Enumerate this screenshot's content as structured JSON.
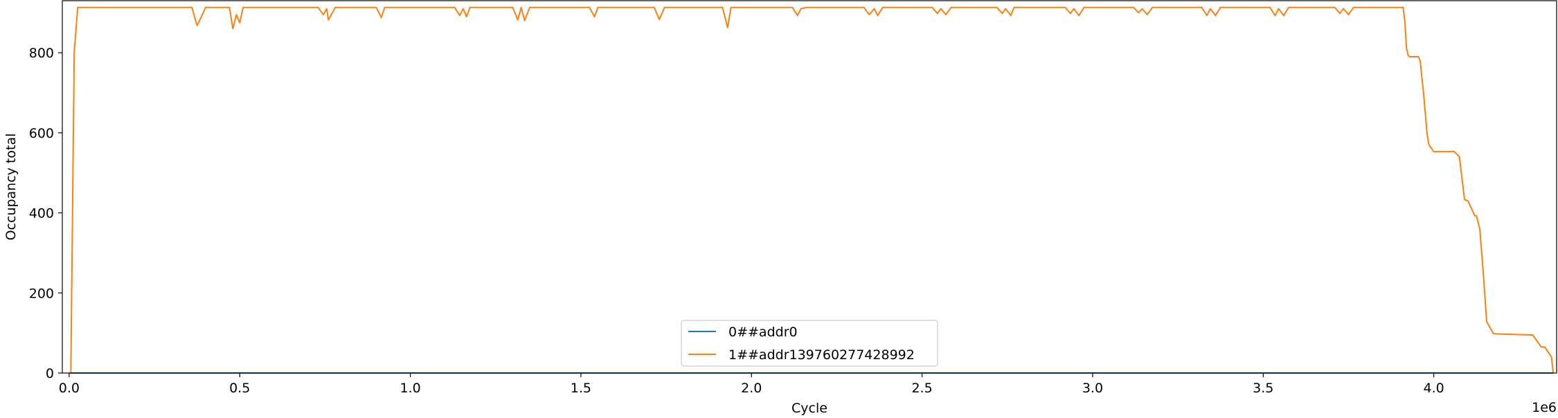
{
  "chart_data": {
    "type": "line",
    "title": "",
    "xlabel": "Cycle",
    "ylabel": "Occupancy total",
    "x_offset_label": "1e6",
    "xlim": [
      -0.02,
      4.36
    ],
    "ylim": [
      0,
      930
    ],
    "x_ticks": [
      0.0,
      0.5,
      1.0,
      1.5,
      2.0,
      2.5,
      3.0,
      3.5,
      4.0
    ],
    "x_tick_labels": [
      "0.0",
      "0.5",
      "1.0",
      "1.5",
      "2.0",
      "2.5",
      "3.0",
      "3.5",
      "4.0"
    ],
    "y_ticks": [
      0,
      200,
      400,
      600,
      800
    ],
    "y_tick_labels": [
      "0",
      "200",
      "400",
      "600",
      "800"
    ],
    "grid": false,
    "legend_position": "bottom-center",
    "series": [
      {
        "name": "0##addr0",
        "color": "#1f77b4",
        "x": [
          0.0,
          4.35
        ],
        "y": [
          0,
          0
        ]
      },
      {
        "name": "1##addr139760277428992",
        "color": "#ff7f0e",
        "x": [
          0.0,
          0.005,
          0.015,
          0.025,
          0.36,
          0.375,
          0.385,
          0.4,
          0.41,
          0.47,
          0.48,
          0.49,
          0.5,
          0.51,
          0.73,
          0.745,
          0.755,
          0.76,
          0.78,
          0.9,
          0.915,
          0.925,
          0.94,
          1.13,
          1.145,
          1.155,
          1.165,
          1.175,
          1.19,
          1.3,
          1.315,
          1.325,
          1.335,
          1.35,
          1.525,
          1.54,
          1.55,
          1.565,
          1.715,
          1.73,
          1.745,
          1.915,
          1.93,
          1.94,
          1.955,
          2.12,
          2.135,
          2.145,
          2.16,
          2.33,
          2.345,
          2.36,
          2.37,
          2.385,
          2.53,
          2.545,
          2.555,
          2.57,
          2.585,
          2.72,
          2.735,
          2.745,
          2.76,
          2.77,
          2.92,
          2.935,
          2.945,
          2.96,
          2.975,
          3.12,
          3.135,
          3.145,
          3.16,
          3.175,
          3.32,
          3.335,
          3.345,
          3.36,
          3.375,
          3.52,
          3.535,
          3.545,
          3.56,
          3.575,
          3.71,
          3.725,
          3.735,
          3.75,
          3.765,
          3.91,
          3.915,
          3.92,
          3.925,
          3.93,
          3.955,
          3.96,
          3.97,
          3.98,
          3.985,
          3.99,
          4.0,
          4.04,
          4.06,
          4.075,
          4.085,
          4.09,
          4.1,
          4.12,
          4.125,
          4.135,
          4.145,
          4.155,
          4.175,
          4.285,
          4.29,
          4.315,
          4.325,
          4.345,
          4.35
        ],
        "y": [
          0,
          0,
          800,
          913,
          913,
          868,
          885,
          913,
          913,
          913,
          860,
          895,
          875,
          913,
          913,
          895,
          910,
          882,
          913,
          913,
          888,
          913,
          913,
          913,
          893,
          910,
          890,
          913,
          913,
          913,
          882,
          913,
          880,
          913,
          913,
          890,
          913,
          913,
          913,
          883,
          913,
          913,
          863,
          913,
          913,
          913,
          893,
          910,
          913,
          913,
          895,
          910,
          893,
          913,
          913,
          898,
          910,
          895,
          913,
          913,
          898,
          910,
          893,
          913,
          913,
          898,
          910,
          893,
          913,
          913,
          900,
          910,
          895,
          913,
          913,
          893,
          910,
          893,
          913,
          913,
          893,
          910,
          893,
          913,
          913,
          898,
          910,
          895,
          913,
          913,
          880,
          812,
          793,
          790,
          790,
          780,
          700,
          600,
          572,
          565,
          553,
          553,
          553,
          540,
          470,
          433,
          430,
          393,
          393,
          360,
          250,
          128,
          98,
          95,
          95,
          65,
          65,
          40,
          0
        ]
      }
    ]
  }
}
